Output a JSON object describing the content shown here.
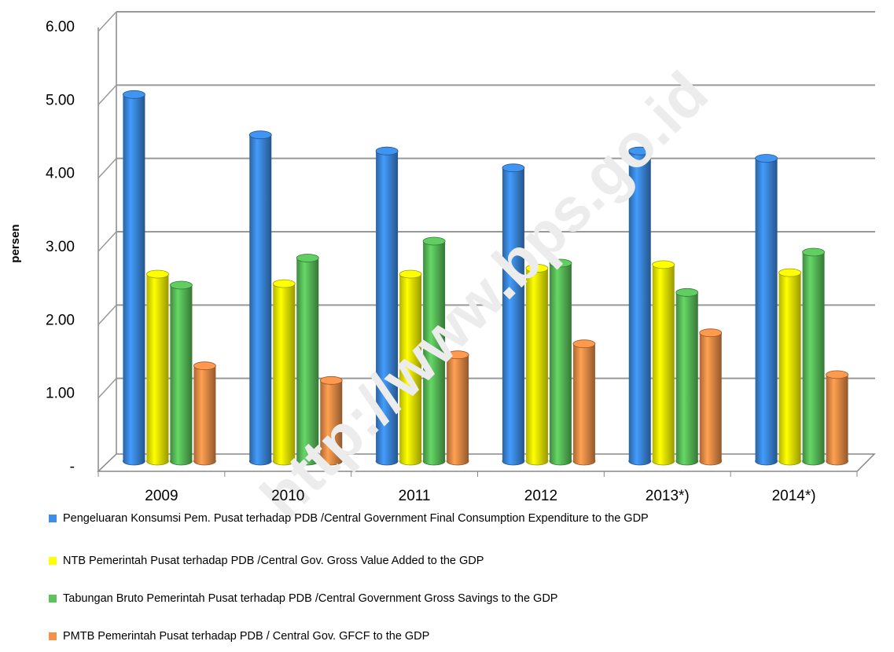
{
  "chart_data": {
    "type": "bar",
    "y_label": "persen",
    "watermark": "http://www.bps.go.id",
    "categories": [
      "2009",
      "2010",
      "2011",
      "2012",
      "2013*)",
      "2014*)"
    ],
    "series": [
      {
        "name": "Pengeluaran Konsumsi Pem. Pusat terhadap PDB /Central Government Final Consumption Expenditure to the GDP",
        "color": "#3d8ee6",
        "values": [
          5.0,
          4.45,
          4.23,
          4.0,
          4.23,
          4.13
        ]
      },
      {
        "name": "NTB Pemerintah Pusat terhadap PDB /Central Gov. Gross Value Added to the GDP",
        "color": "#ffff00",
        "values": [
          2.55,
          2.42,
          2.55,
          2.63,
          2.68,
          2.57
        ]
      },
      {
        "name": "Tabungan Bruto Pemerintah Pusat terhadap PDB /Central Government Gross Savings to the GDP",
        "color": "#5cc45c",
        "values": [
          2.4,
          2.77,
          3.0,
          2.7,
          2.3,
          2.85
        ]
      },
      {
        "name": "PMTB Pemerintah Pusat terhadap PDB / Central Gov. GFCF to the GDP",
        "color": "#f5924a",
        "values": [
          1.3,
          1.1,
          1.45,
          1.6,
          1.75,
          1.18
        ]
      }
    ],
    "ylim": [
      0,
      6
    ],
    "yticks": [
      {
        "value": 0,
        "label": "-"
      },
      {
        "value": 1,
        "label": "1.00"
      },
      {
        "value": 2,
        "label": "2.00"
      },
      {
        "value": 3,
        "label": "3.00"
      },
      {
        "value": 4,
        "label": "4.00"
      },
      {
        "value": 5,
        "label": "5.00"
      },
      {
        "value": 6,
        "label": "6.00"
      }
    ],
    "grid": true
  }
}
